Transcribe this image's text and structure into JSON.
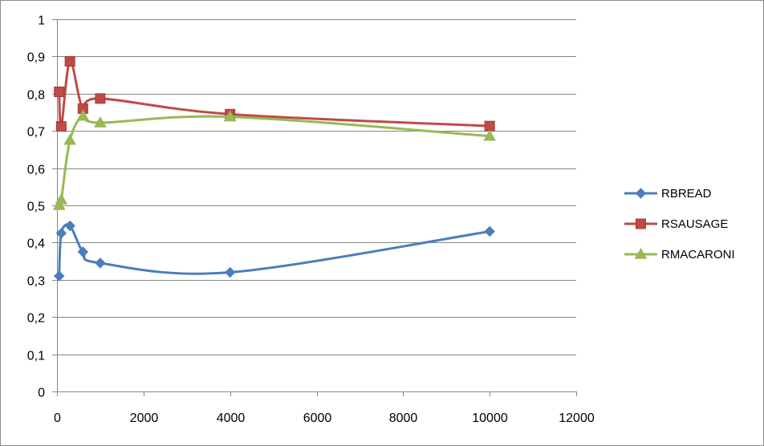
{
  "chart_data": {
    "type": "line",
    "title": "",
    "xlabel": "",
    "ylabel": "",
    "xlim": [
      0,
      12000
    ],
    "ylim": [
      0,
      1
    ],
    "x_ticks": [
      "0",
      "2000",
      "4000",
      "6000",
      "8000",
      "10000",
      "12000"
    ],
    "x_tick_values": [
      0,
      2000,
      4000,
      6000,
      8000,
      10000,
      12000
    ],
    "y_ticks": [
      "0",
      "0,1",
      "0,2",
      "0,3",
      "0,4",
      "0,5",
      "0,6",
      "0,7",
      "0,8",
      "0,9",
      "1"
    ],
    "y_tick_values": [
      0,
      0.1,
      0.2,
      0.3,
      0.4,
      0.5,
      0.6,
      0.7,
      0.8,
      0.9,
      1
    ],
    "grid": "horizontal",
    "legend_position": "right",
    "smooth": true,
    "series": [
      {
        "name": "RBREAD",
        "color": "#4a7ebb",
        "marker": "diamond",
        "x": [
          50,
          100,
          300,
          600,
          1000,
          4000,
          10000
        ],
        "y": [
          0.31,
          0.425,
          0.445,
          0.375,
          0.345,
          0.32,
          0.43
        ]
      },
      {
        "name": "RSAUSAGE",
        "color": "#be4b48",
        "marker": "square",
        "x": [
          50,
          100,
          300,
          600,
          1000,
          4000,
          10000
        ],
        "y": [
          0.805,
          0.712,
          0.887,
          0.76,
          0.787,
          0.745,
          0.713
        ]
      },
      {
        "name": "RMACARONI",
        "color": "#98b954",
        "marker": "triangle",
        "x": [
          50,
          100,
          300,
          600,
          1000,
          4000,
          10000
        ],
        "y": [
          0.5,
          0.515,
          0.675,
          0.74,
          0.722,
          0.738,
          0.686
        ]
      }
    ]
  }
}
